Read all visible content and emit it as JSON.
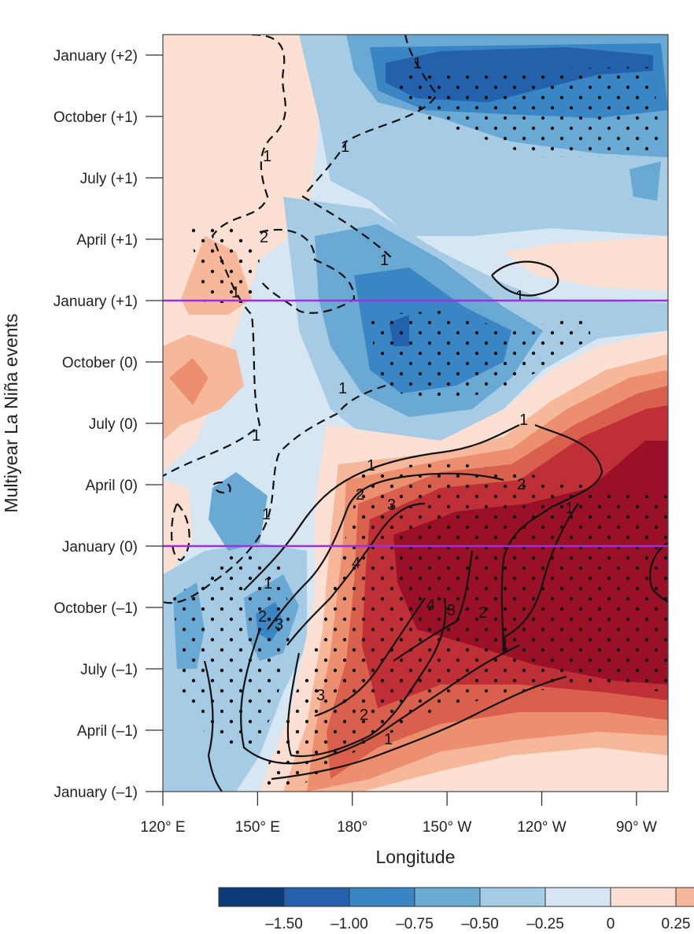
{
  "chart_data": {
    "type": "heatmap",
    "title": "",
    "xlabel": "Longitude",
    "ylabel": "Multiyear La Niña events",
    "x_ticks": [
      "120° E",
      "150° E",
      "180°",
      "150° W",
      "120° W",
      "90° W"
    ],
    "x_tick_values": [
      120,
      150,
      180,
      210,
      240,
      270
    ],
    "xlim": [
      120,
      280
    ],
    "y_ticks": [
      "January (–1)",
      "April (–1)",
      "July (–1)",
      "October (–1)",
      "January (0)",
      "April (0)",
      "July (0)",
      "October (0)",
      "January (+1)",
      "April (+1)",
      "July (+1)",
      "October (+1)",
      "January (+2)"
    ],
    "y_tick_values": [
      0,
      3,
      6,
      9,
      12,
      15,
      18,
      21,
      24,
      27,
      30,
      33,
      36
    ],
    "ylim": [
      0,
      37
    ],
    "reference_lines": [
      "January (0)",
      "January (+1)"
    ],
    "reference_line_color": "#9b30e0",
    "colorbar": {
      "tick_labels": [
        "–1.50",
        "–1.00",
        "–0.75",
        "–0.50",
        "–0.25",
        "0",
        "0.25"
      ],
      "levels": [
        -1.5,
        -1.0,
        -0.75,
        -0.5,
        -0.25,
        0,
        0.25
      ],
      "colors": [
        "#0c3b78",
        "#2361ad",
        "#3a85c3",
        "#6aa9d3",
        "#a6cbe4",
        "#d6e6f2",
        "#fbe0d3",
        "#f6b79a"
      ]
    },
    "fill_colors": {
      "neg_150": "#0c3b78",
      "neg_100": "#2361ad",
      "neg_075": "#3a85c3",
      "neg_050": "#6aa9d3",
      "neg_025": "#a6cbe4",
      "neg_000": "#d6e6f2",
      "pos_000": "#fbe0d3",
      "pos_025": "#f6b79a",
      "pos_050": "#ec8f6e",
      "pos_075": "#d9604d",
      "pos_100": "#bf2f36",
      "pos_150": "#9a1127"
    },
    "contour_labels": [
      "1",
      "2",
      "3",
      "4"
    ],
    "stippling": "significant"
  }
}
